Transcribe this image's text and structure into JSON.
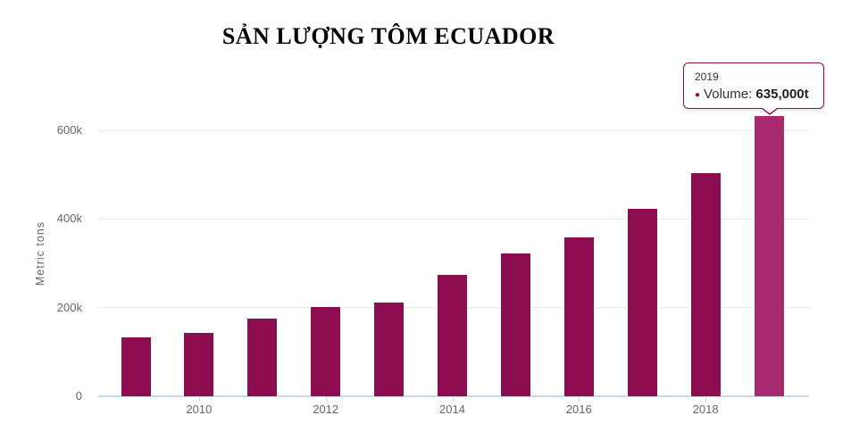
{
  "page": {
    "title": "SẢN LƯỢNG TÔM ECUADOR"
  },
  "chart_data": {
    "type": "bar",
    "title": "SẢN LƯỢNG TÔM ECUADOR",
    "xlabel": "",
    "ylabel": "Metric tons",
    "categories": [
      "2009",
      "2010",
      "2011",
      "2012",
      "2013",
      "2014",
      "2015",
      "2016",
      "2017",
      "2018",
      "2019"
    ],
    "values": [
      135000,
      145000,
      177000,
      203000,
      213000,
      276000,
      325000,
      360000,
      424000,
      505000,
      635000
    ],
    "series_name": "Volume",
    "unit": "t",
    "ylim": [
      0,
      660000
    ],
    "grid": true,
    "legend": "none",
    "yticks": [
      {
        "label": "0",
        "value": 0
      },
      {
        "label": "200k",
        "value": 200000
      },
      {
        "label": "400k",
        "value": 400000
      },
      {
        "label": "600k",
        "value": 600000
      }
    ],
    "xticks": [
      "2010",
      "2012",
      "2014",
      "2016",
      "2018"
    ],
    "highlighted_category": "2019",
    "colors": {
      "bar": "#8C0E51",
      "bar_highlight": "#A82A6E",
      "grid": "#EDE8E2",
      "axis": "#CCD6EB",
      "label": "#666666",
      "title": "#000000",
      "tooltip_border": "#8C0E51",
      "tooltip_bg": "#FDFDFD",
      "tooltip_text": "#333333"
    },
    "tooltip": {
      "header": "2019",
      "bullet": "●",
      "label": "Volume:",
      "value": "635,000t"
    }
  }
}
